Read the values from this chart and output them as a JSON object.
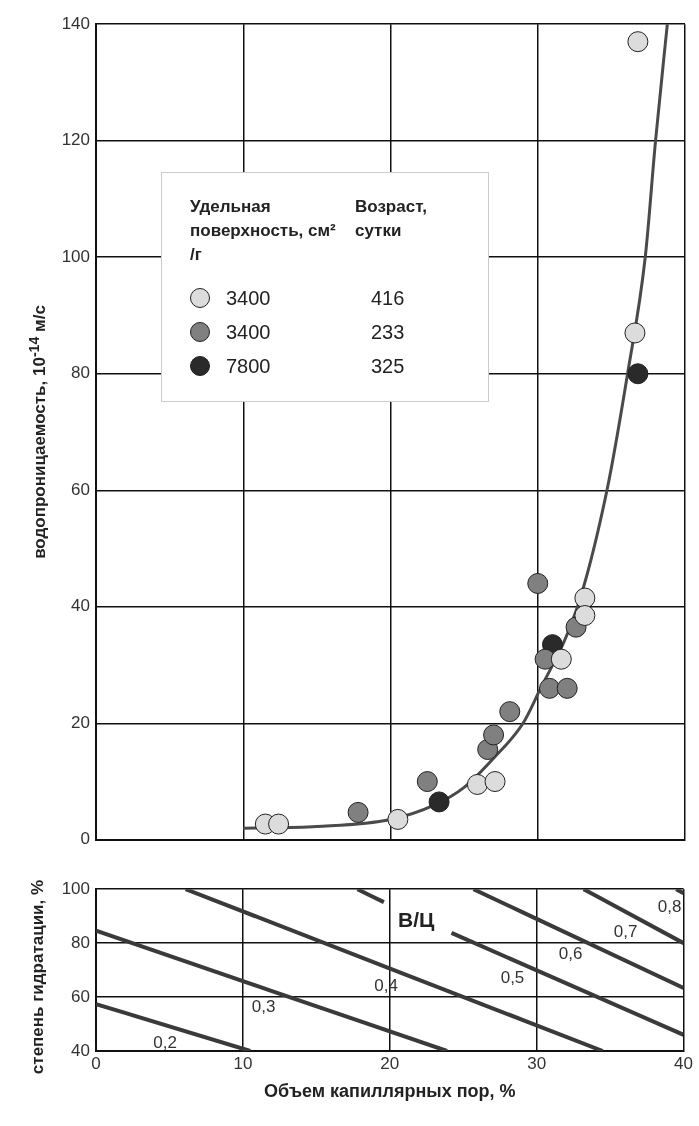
{
  "chart_data": [
    {
      "type": "scatter",
      "ylabel": "водопроницаемость, 10$^{-14}$ м/с",
      "xlim": [
        0,
        40
      ],
      "xticks": [
        0,
        10,
        20,
        30,
        40
      ],
      "ylim": [
        0,
        140
      ],
      "yticks": [
        0,
        20,
        40,
        60,
        80,
        100,
        120,
        140
      ],
      "tick_labels": "y",
      "grid": true,
      "marker": "circle",
      "legend": "top left",
      "legend_title": "Удельная поверхность, см² /г\tВозраст, сутки",
      "series": [
        {
          "name": "3400\t416",
          "color": "#dcdcdc",
          "x": [
            11.5,
            12.4,
            20.5,
            25.9,
            27.1,
            31.6,
            33.2,
            33.2,
            36.8,
            36.6
          ],
          "values": [
            2.7,
            2.7,
            3.5,
            9.5,
            10,
            31,
            41.5,
            38.5,
            137,
            87
          ]
        },
        {
          "name": "3400\t233",
          "color": "#808080",
          "x": [
            17.8,
            22.5,
            26.6,
            27.0,
            28.1,
            30.0,
            30.5,
            30.8,
            32.0,
            32.6
          ],
          "values": [
            4.7,
            10,
            15.5,
            18,
            22,
            44,
            31,
            26,
            26,
            36.5
          ]
        },
        {
          "name": "7800\t325",
          "color": "#2a2a2a",
          "x": [
            23.3,
            31.0,
            36.8
          ],
          "values": [
            6.5,
            33.5,
            80
          ]
        },
        {
          "type": "line",
          "color": "#4a4a4a",
          "marker": "none",
          "x": [
            10,
            15,
            20,
            23,
            25,
            27,
            29,
            30,
            32.7,
            34.7,
            36.1,
            37.3,
            38,
            38.8
          ],
          "values": [
            2,
            2.3,
            3.5,
            6,
            9,
            14,
            20,
            25,
            40,
            60,
            80,
            100,
            120,
            140
          ]
        }
      ]
    },
    {
      "type": "line",
      "xlabel": "Объем капиллярных пор, %",
      "ylabel": "степень гидратации, %",
      "xlim": [
        0,
        40
      ],
      "xticks": [
        0,
        10,
        20,
        30,
        40
      ],
      "ylim": [
        40,
        100
      ],
      "yticks": [
        40,
        60,
        80,
        100
      ],
      "grid": true,
      "marker": "none",
      "annotations": [
        "В/Ц"
      ],
      "series": [
        {
          "name": "0,2",
          "color": "#3a3a3a",
          "x": [
            0,
            10.5
          ],
          "values": [
            57.4,
            40
          ]
        },
        {
          "name": "0,3",
          "color": "#3a3a3a",
          "x": [
            0,
            23.9
          ],
          "values": [
            84.6,
            40
          ]
        },
        {
          "name": "0,4",
          "color": "#3a3a3a",
          "x": [
            6.1,
            34.5
          ],
          "values": [
            100,
            40
          ]
        },
        {
          "name": "0,5",
          "color": "#3a3a3a",
          "x": [
            17.8,
            19.6,
            21.9,
            24.2,
            40
          ],
          "values": [
            100,
            95.2,
            null,
            83.8,
            46
          ]
        },
        {
          "name": "0,6",
          "color": "#3a3a3a",
          "x": [
            25.7,
            40
          ],
          "values": [
            100,
            63.4
          ]
        },
        {
          "name": "0,7",
          "color": "#3a3a3a",
          "x": [
            33.2,
            40
          ],
          "values": [
            100,
            80
          ]
        },
        {
          "name": "0,8",
          "color": "#3a3a3a",
          "x": [
            39.5,
            40
          ],
          "values": [
            100,
            98.5
          ]
        }
      ]
    }
  ]
}
